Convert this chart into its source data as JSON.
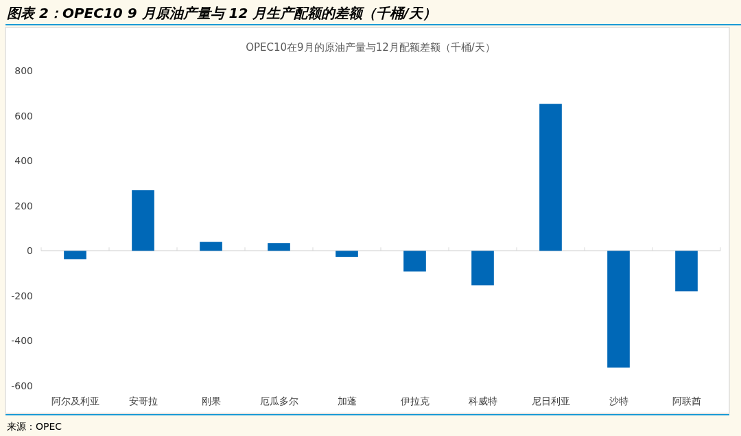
{
  "chart_data": {
    "type": "bar",
    "title": "图表 2：OPEC10 9 月原油产量与 12 月生产配额的差额（千桶/天）",
    "subtitle": "OPEC10在9月的原油产量与12月配额差额（千桶/天）",
    "categories": [
      "阿尔及利亚",
      "安哥拉",
      "刚果",
      "厄瓜多尔",
      "加蓬",
      "伊拉克",
      "科威特",
      "尼日利亚",
      "沙特",
      "阿联酋"
    ],
    "values": [
      -37,
      269,
      40,
      34,
      -27,
      -92,
      -153,
      653,
      -519,
      -180
    ],
    "color": "#0068b7",
    "ylim": [
      -600,
      800
    ],
    "yticks": [
      -600,
      -400,
      -200,
      0,
      200,
      400,
      600,
      800
    ],
    "annotations": [
      "来源：OPEC"
    ]
  }
}
